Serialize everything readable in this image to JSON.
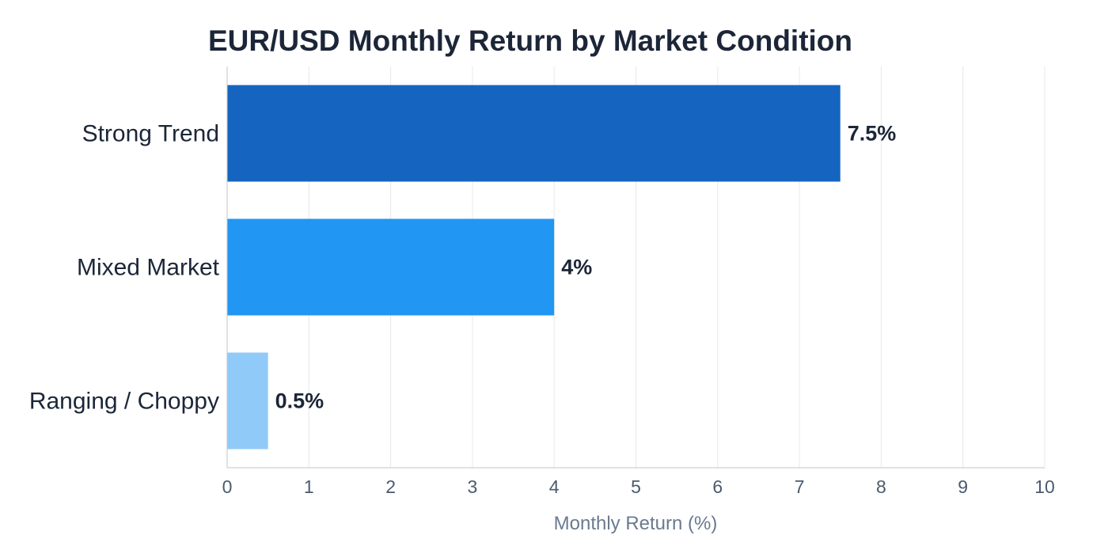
{
  "chart_data": {
    "type": "bar",
    "orientation": "horizontal",
    "title": "EUR/USD Monthly Return by Market Condition",
    "xlabel": "Monthly Return (%)",
    "ylabel": "",
    "xlim": [
      0,
      10
    ],
    "x_ticks": [
      "0",
      "1",
      "2",
      "3",
      "4",
      "5",
      "6",
      "7",
      "8",
      "9",
      "10"
    ],
    "grid": "vertical",
    "categories": [
      "Strong Trend",
      "Mixed Market",
      "Ranging / Choppy"
    ],
    "values": [
      7.5,
      4,
      0.5
    ],
    "value_labels": [
      "7.5%",
      "4%",
      "0.5%"
    ],
    "colors": [
      "#1565c0",
      "#2196f3",
      "#90caf9"
    ]
  }
}
